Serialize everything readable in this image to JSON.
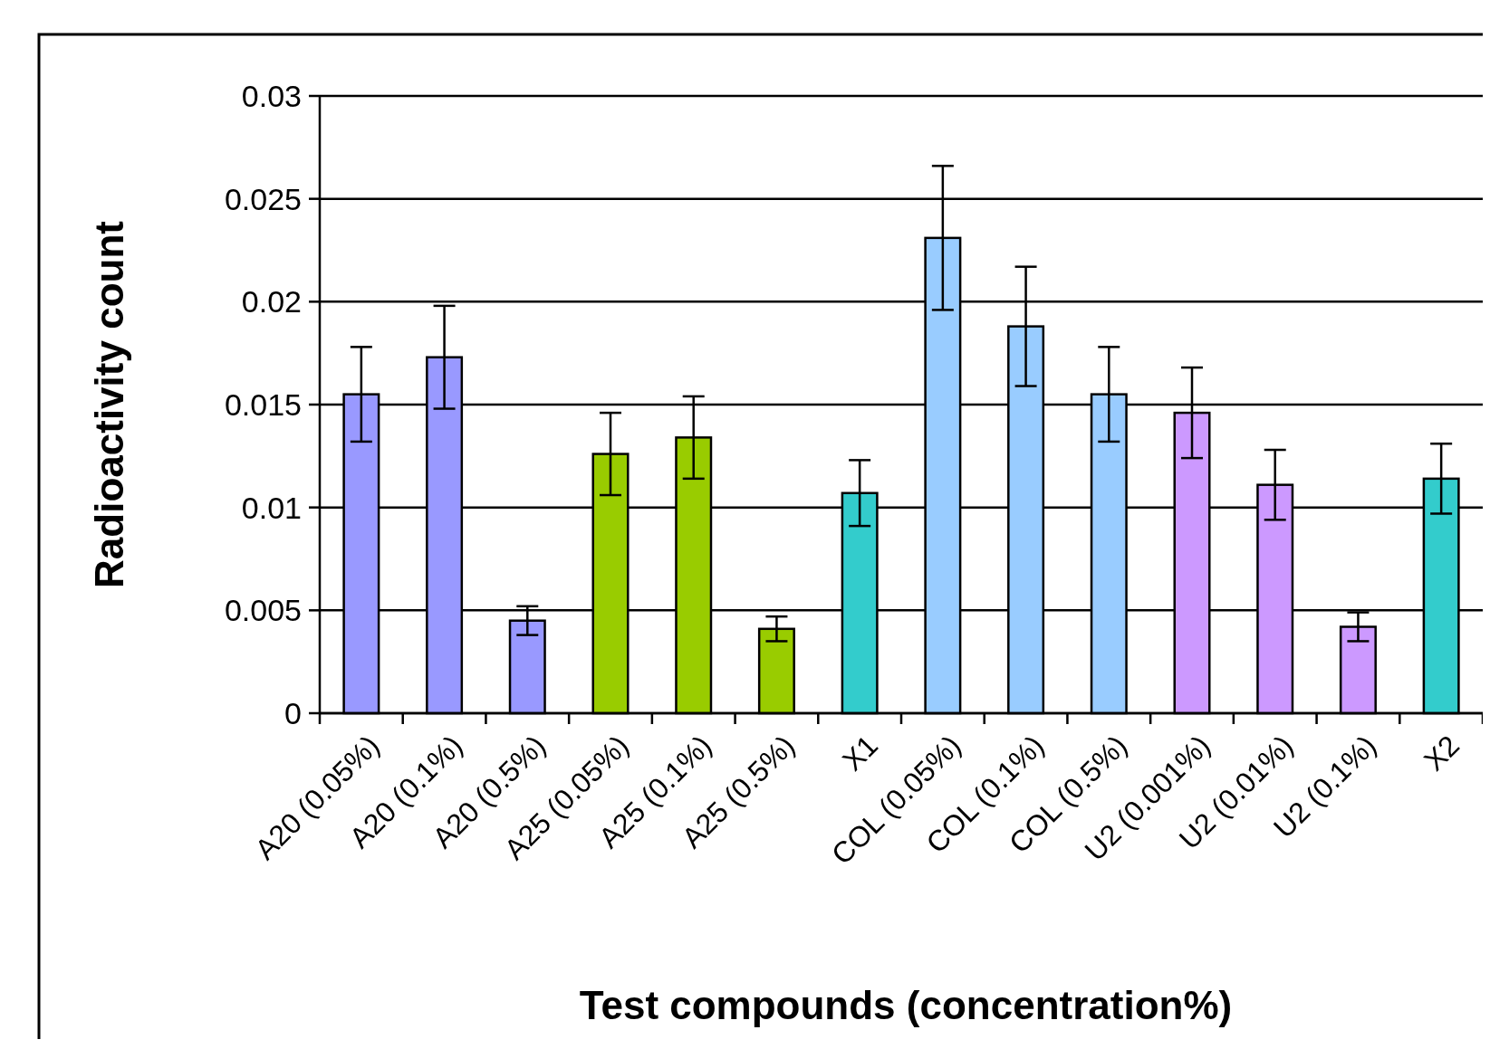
{
  "chart_data": {
    "type": "bar",
    "xlabel": "Test compounds (concentration%)",
    "ylabel": "Radioactivity count",
    "categories": [
      "A20 (0.05%)",
      "A20 (0.1%)",
      "A20 (0.5%)",
      "A25 (0.05%)",
      "A25 (0.1%)",
      "A25 (0.5%)",
      "X1",
      "COL (0.05%)",
      "COL (0.1%)",
      "COL (0.5%)",
      "U2 (0.001%)",
      "U2 (0.01%)",
      "U2 (0.1%)",
      "X2"
    ],
    "values": [
      0.0155,
      0.0173,
      0.0045,
      0.0126,
      0.0134,
      0.0041,
      0.0107,
      0.0231,
      0.0188,
      0.0155,
      0.0146,
      0.0111,
      0.0042,
      0.0114
    ],
    "errors": [
      0.0023,
      0.0025,
      0.0007,
      0.002,
      0.002,
      0.0006,
      0.0016,
      0.0035,
      0.0029,
      0.0023,
      0.0022,
      0.0017,
      0.0007,
      0.0017
    ],
    "colors": [
      "#9999ff",
      "#9999ff",
      "#9999ff",
      "#99cc00",
      "#99cc00",
      "#99cc00",
      "#33cccc",
      "#99ccff",
      "#99ccff",
      "#99ccff",
      "#cc99ff",
      "#cc99ff",
      "#cc99ff",
      "#33cccc"
    ],
    "ylim": [
      0,
      0.03
    ],
    "yticks": [
      0,
      0.005,
      0.01,
      0.015,
      0.02,
      0.025,
      0.03
    ],
    "grid": "y"
  }
}
